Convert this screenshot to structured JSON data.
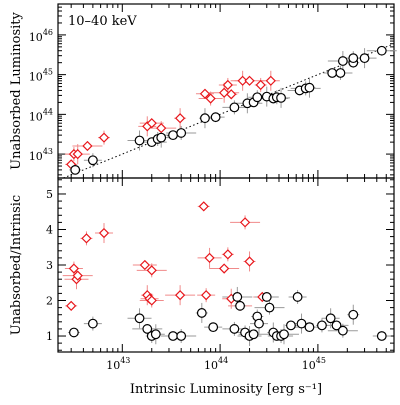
{
  "chart_data": [
    {
      "type": "scatter",
      "panel": "top",
      "annotation": "10–40 keV",
      "xlabel": "Intrinsic Luminosity [erg s⁻¹]",
      "ylabel": "Unabsorbed Luminosity",
      "xscale": "log",
      "yscale": "log",
      "xlim": [
        2.2e+42,
        6e+45
      ],
      "ylim": [
        2.5e+42,
        6e+46
      ],
      "x_ticks": [
        {
          "label": "10",
          "exp": "43",
          "value": 1e+43
        },
        {
          "label": "10",
          "exp": "44",
          "value": 1e+44
        },
        {
          "label": "10",
          "exp": "45",
          "value": 1e+45
        }
      ],
      "y_ticks": [
        {
          "label": "10",
          "exp": "43",
          "value": 1e+43
        },
        {
          "label": "10",
          "exp": "44",
          "value": 1e+44
        },
        {
          "label": "10",
          "exp": "45",
          "value": 1e+45
        },
        {
          "label": "10",
          "exp": "46",
          "value": 1e+46
        }
      ],
      "reference_line": "y = x",
      "series": [
        {
          "marker": "diamond",
          "color": "#e8171c",
          "points": [
            {
              "x": 3e+42,
              "y": 5.5e+42
            },
            {
              "x": 3.2e+42,
              "y": 1e+43
            },
            {
              "x": 3.5e+42,
              "y": 1e+43
            },
            {
              "x": 4.4e+42,
              "y": 1.6e+43
            },
            {
              "x": 6.5e+42,
              "y": 2.6e+43
            },
            {
              "x": 1.8e+43,
              "y": 5e+43
            },
            {
              "x": 2e+43,
              "y": 6e+43
            },
            {
              "x": 2.5e+43,
              "y": 4.5e+43
            },
            {
              "x": 3.9e+43,
              "y": 8e+43
            },
            {
              "x": 7e+43,
              "y": 3.3e+44
            },
            {
              "x": 8e+43,
              "y": 2.5e+44
            },
            {
              "x": 1.1e+44,
              "y": 3.5e+44
            },
            {
              "x": 1.3e+44,
              "y": 3.2e+44
            },
            {
              "x": 1.2e+44,
              "y": 5.5e+44
            },
            {
              "x": 1.7e+44,
              "y": 7e+44
            },
            {
              "x": 2e+44,
              "y": 7e+44
            },
            {
              "x": 2.6e+44,
              "y": 5.5e+44
            },
            {
              "x": 3.3e+44,
              "y": 7e+44
            }
          ]
        },
        {
          "marker": "circle",
          "color": "#000000",
          "points": [
            {
              "x": 3.3e+42,
              "y": 4e+42
            },
            {
              "x": 5e+42,
              "y": 7e+42
            },
            {
              "x": 1.5e+43,
              "y": 2.2e+43
            },
            {
              "x": 2e+43,
              "y": 2e+43
            },
            {
              "x": 2.3e+43,
              "y": 2.4e+43
            },
            {
              "x": 2.5e+43,
              "y": 2.6e+43
            },
            {
              "x": 3.3e+43,
              "y": 3e+43
            },
            {
              "x": 4e+43,
              "y": 3.4e+43
            },
            {
              "x": 7e+43,
              "y": 8e+43
            },
            {
              "x": 9e+43,
              "y": 8.5e+43
            },
            {
              "x": 1.4e+44,
              "y": 1.5e+44
            },
            {
              "x": 1.9e+44,
              "y": 1.9e+44
            },
            {
              "x": 2.2e+44,
              "y": 2e+44
            },
            {
              "x": 2.4e+44,
              "y": 2.7e+44
            },
            {
              "x": 3e+44,
              "y": 2.8e+44
            },
            {
              "x": 3.5e+44,
              "y": 2.5e+44
            },
            {
              "x": 3.8e+44,
              "y": 2.7e+44
            },
            {
              "x": 4.2e+44,
              "y": 2.6e+44
            },
            {
              "x": 6.5e+44,
              "y": 4e+44
            },
            {
              "x": 7.5e+44,
              "y": 4.5e+44
            },
            {
              "x": 8.2e+44,
              "y": 4.7e+44
            },
            {
              "x": 1.4e+45,
              "y": 1.1e+45
            },
            {
              "x": 1.7e+45,
              "y": 1.1e+45
            },
            {
              "x": 1.8e+45,
              "y": 2.2e+45
            },
            {
              "x": 2.3e+45,
              "y": 2e+45
            },
            {
              "x": 2.3e+45,
              "y": 2.6e+45
            },
            {
              "x": 3e+45,
              "y": 2.6e+45
            },
            {
              "x": 4.5e+45,
              "y": 4e+45
            }
          ]
        }
      ]
    },
    {
      "type": "scatter",
      "panel": "bottom",
      "xlabel": "Intrinsic Luminosity [erg s⁻¹]",
      "ylabel": "Unabsorbed/Intrinsic",
      "xscale": "log",
      "yscale": "linear",
      "xlim": [
        2.2e+42,
        6e+45
      ],
      "ylim": [
        0.55,
        5.45
      ],
      "x_ticks": [
        {
          "label": "10",
          "exp": "43",
          "value": 1e+43
        },
        {
          "label": "10",
          "exp": "44",
          "value": 1e+44
        },
        {
          "label": "10",
          "exp": "45",
          "value": 1e+45
        }
      ],
      "y_ticks": [
        {
          "label": "1",
          "value": 1
        },
        {
          "label": "2",
          "value": 2
        },
        {
          "label": "3",
          "value": 3
        },
        {
          "label": "4",
          "value": 4
        },
        {
          "label": "5",
          "value": 5
        }
      ],
      "series": [
        {
          "marker": "diamond",
          "color": "#e8171c",
          "points": [
            {
              "x": 3e+42,
              "y": 1.85
            },
            {
              "x": 3.2e+42,
              "y": 2.9
            },
            {
              "x": 3.4e+42,
              "y": 2.6
            },
            {
              "x": 3.5e+42,
              "y": 2.7
            },
            {
              "x": 4.3e+42,
              "y": 3.75
            },
            {
              "x": 6.5e+42,
              "y": 3.9
            },
            {
              "x": 1.7e+43,
              "y": 3.0
            },
            {
              "x": 2e+43,
              "y": 2.85
            },
            {
              "x": 1.8e+43,
              "y": 2.15
            },
            {
              "x": 1.9e+43,
              "y": 2.05
            },
            {
              "x": 2e+43,
              "y": 2.0
            },
            {
              "x": 3.9e+43,
              "y": 2.15
            },
            {
              "x": 6.8e+43,
              "y": 4.65
            },
            {
              "x": 7.2e+43,
              "y": 2.15
            },
            {
              "x": 7.8e+43,
              "y": 3.2
            },
            {
              "x": 1.1e+44,
              "y": 2.9
            },
            {
              "x": 1.2e+44,
              "y": 3.3
            },
            {
              "x": 1.3e+44,
              "y": 2.05
            },
            {
              "x": 1.6e+44,
              "y": 1.85
            },
            {
              "x": 1.8e+44,
              "y": 4.2
            },
            {
              "x": 2e+44,
              "y": 3.1
            },
            {
              "x": 2.7e+44,
              "y": 2.1
            }
          ]
        },
        {
          "marker": "circle",
          "color": "#000000",
          "points": [
            {
              "x": 3.2e+42,
              "y": 1.1
            },
            {
              "x": 5e+42,
              "y": 1.35
            },
            {
              "x": 1.5e+43,
              "y": 1.5
            },
            {
              "x": 1.8e+43,
              "y": 1.2
            },
            {
              "x": 2e+43,
              "y": 1.0
            },
            {
              "x": 2.2e+43,
              "y": 1.05
            },
            {
              "x": 3.3e+43,
              "y": 1.0
            },
            {
              "x": 4e+43,
              "y": 1.0
            },
            {
              "x": 6.5e+43,
              "y": 1.65
            },
            {
              "x": 8.5e+43,
              "y": 1.25
            },
            {
              "x": 1.4e+44,
              "y": 1.2
            },
            {
              "x": 1.5e+44,
              "y": 2.1
            },
            {
              "x": 1.6e+44,
              "y": 1.85
            },
            {
              "x": 1.8e+44,
              "y": 1.1
            },
            {
              "x": 2e+44,
              "y": 1.0
            },
            {
              "x": 2.2e+44,
              "y": 1.05
            },
            {
              "x": 2.4e+44,
              "y": 1.55
            },
            {
              "x": 2.5e+44,
              "y": 1.35
            },
            {
              "x": 3e+44,
              "y": 2.1
            },
            {
              "x": 3.2e+44,
              "y": 1.8
            },
            {
              "x": 3.5e+44,
              "y": 1.1
            },
            {
              "x": 3.8e+44,
              "y": 1.0
            },
            {
              "x": 4.2e+44,
              "y": 1.0
            },
            {
              "x": 4.5e+44,
              "y": 1.05
            },
            {
              "x": 5.3e+44,
              "y": 1.3
            },
            {
              "x": 6.2e+44,
              "y": 2.1
            },
            {
              "x": 6.8e+44,
              "y": 1.35
            },
            {
              "x": 8.2e+44,
              "y": 1.25
            },
            {
              "x": 1.1e+45,
              "y": 1.3
            },
            {
              "x": 1.35e+45,
              "y": 1.5
            },
            {
              "x": 1.55e+45,
              "y": 1.3
            },
            {
              "x": 1.8e+45,
              "y": 1.15
            },
            {
              "x": 2.3e+45,
              "y": 1.6
            },
            {
              "x": 4.5e+45,
              "y": 1.0
            }
          ]
        }
      ]
    }
  ]
}
